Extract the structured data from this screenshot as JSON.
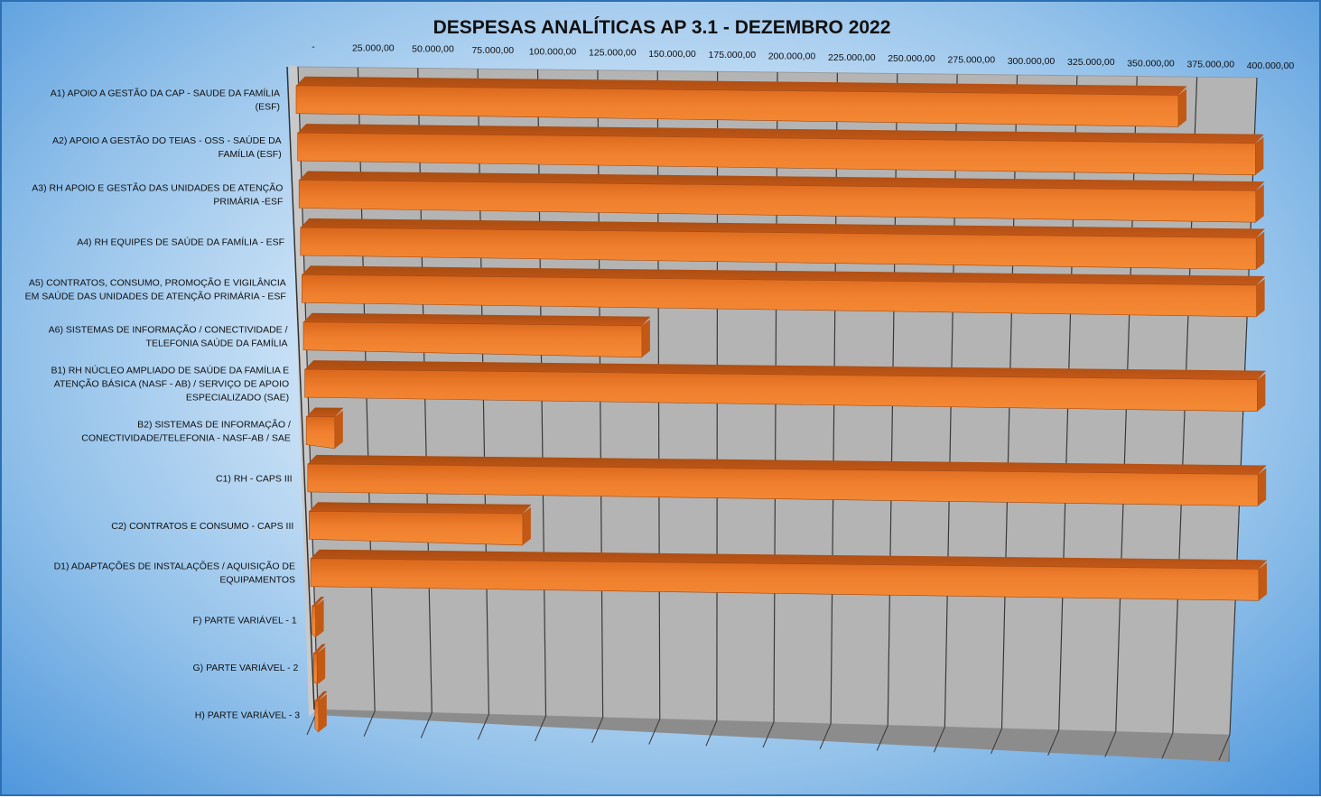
{
  "chart_data": {
    "type": "bar",
    "orientation": "horizontal",
    "title": "DESPESAS ANALÍTICAS AP 3.1 - DEZEMBRO 2022",
    "xlabel": "",
    "ylabel": "",
    "xlim": [
      0,
      400000
    ],
    "tick_labels": [
      "-",
      "25.000,00",
      "50.000,00",
      "75.000,00",
      "100.000,00",
      "125.000,00",
      "150.000,00",
      "175.000,00",
      "200.000,00",
      "225.000,00",
      "250.000,00",
      "275.000,00",
      "300.000,00",
      "325.000,00",
      "350.000,00",
      "375.000,00",
      "400.000,00"
    ],
    "tick_values": [
      0,
      25000,
      50000,
      75000,
      100000,
      125000,
      150000,
      175000,
      200000,
      225000,
      250000,
      275000,
      300000,
      325000,
      350000,
      375000,
      400000
    ],
    "categories": [
      [
        "A1) APOIO A GESTÃO DA CAP - SAUDE DA FAMÍLIA",
        "(ESF)"
      ],
      [
        "A2) APOIO A GESTÃO DO TEIAS - OSS - SAÚDE DA",
        "FAMÍLIA (ESF)"
      ],
      [
        "A3) RH APOIO E GESTÃO DAS UNIDADES DE ATENÇÃO",
        "PRIMÁRIA -ESF"
      ],
      [
        "A4) RH EQUIPES DE SAÚDE DA FAMÍLIA - ESF"
      ],
      [
        "A5) CONTRATOS, CONSUMO, PROMOÇÃO E VIGILÂNCIA",
        "EM SAÚDE DAS UNIDADES DE ATENÇÃO PRIMÁRIA - ESF"
      ],
      [
        "A6) SISTEMAS DE INFORMAÇÃO / CONECTIVIDADE /",
        "TELEFONIA SAÚDE DA FAMÍLIA"
      ],
      [
        "B1) RH NÚCLEO AMPLIADO DE SAÚDE DA FAMÍLIA E",
        "ATENÇÃO BÁSICA (NASF - AB) / SERVIÇO DE APOIO",
        "ESPECIALIZADO (SAE)"
      ],
      [
        "B2) SISTEMAS DE INFORMAÇÃO /",
        "CONECTIVIDADE/TELEFONIA - NASF-AB / SAE"
      ],
      [
        "C1) RH - CAPS III"
      ],
      [
        "C2) CONTRATOS E CONSUMO - CAPS III"
      ],
      [
        "D1) ADAPTAÇÕES DE INSTALAÇÕES / AQUISIÇÃO DE",
        "EQUIPAMENTOS"
      ],
      [
        "F) PARTE VARIÁVEL - 1"
      ],
      [
        "G) PARTE VARIÁVEL - 2"
      ],
      [
        "H) PARTE VARIÁVEL - 3"
      ]
    ],
    "values": [
      368000,
      400000,
      400000,
      400000,
      400000,
      142000,
      400000,
      12000,
      400000,
      90000,
      400000,
      0,
      0,
      0
    ],
    "bar_color": "#e8762a",
    "grid": true,
    "legend": "none"
  }
}
